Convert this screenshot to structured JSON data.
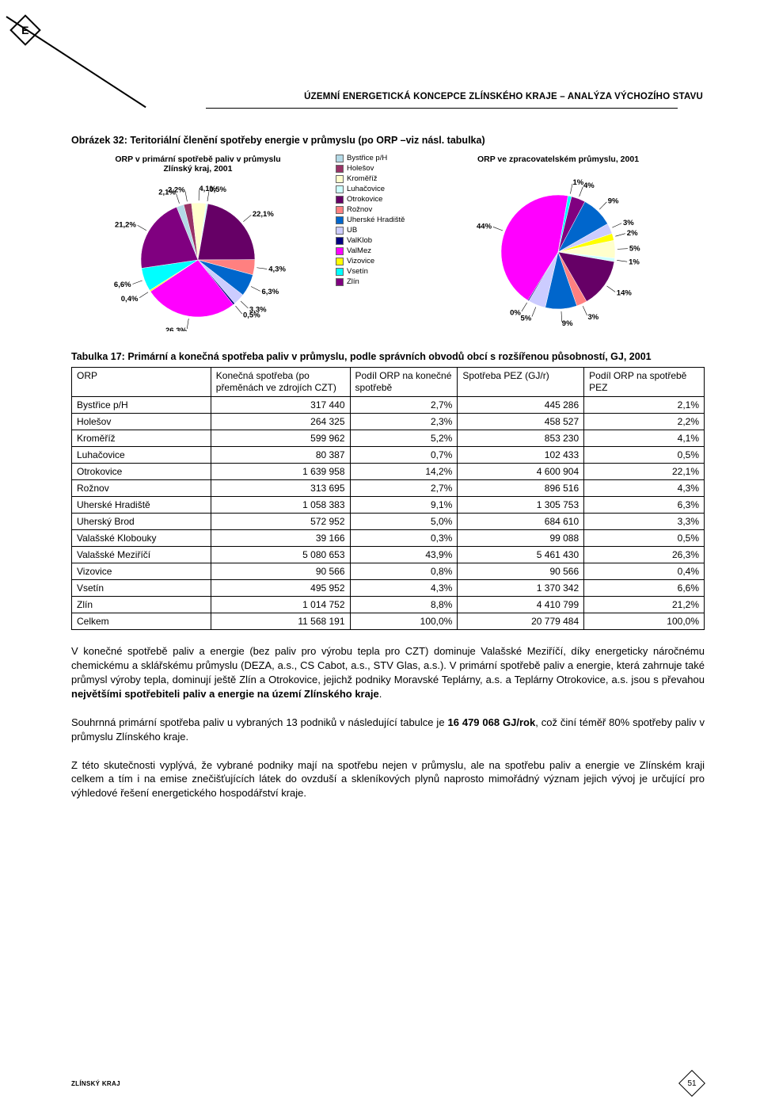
{
  "header": {
    "title": "ÚZEMNÍ ENERGETICKÁ KONCEPCE ZLÍNSKÉHO KRAJE – ANALÝZA VÝCHOZÍHO STAVU",
    "logo_letter": "E"
  },
  "figure": {
    "caption": "Obrázek 32:  Teritoriální členění spotřeby energie v průmyslu (po ORP –viz násl. tabulka)"
  },
  "legend": {
    "items": [
      {
        "label": "Bystřice p/H",
        "color": "#b3d9e6"
      },
      {
        "label": "Holešov",
        "color": "#993366"
      },
      {
        "label": "Kroměříž",
        "color": "#ffffcc"
      },
      {
        "label": "Luhačovice",
        "color": "#ccffff"
      },
      {
        "label": "Otrokovice",
        "color": "#660066"
      },
      {
        "label": "Rožnov",
        "color": "#ff8080"
      },
      {
        "label": "Uherské Hradiště",
        "color": "#0066cc"
      },
      {
        "label": "UB",
        "color": "#ccccff"
      },
      {
        "label": "ValKlob",
        "color": "#000080"
      },
      {
        "label": "ValMez",
        "color": "#ff00ff"
      },
      {
        "label": "Vizovice",
        "color": "#ffff00"
      },
      {
        "label": "Vsetín",
        "color": "#00ffff"
      },
      {
        "label": "Zlín",
        "color": "#800080"
      }
    ]
  },
  "chart_left": {
    "type": "pie",
    "title": "ORP v primární spotřebě paliv v průmyslu\nZlínský kraj, 2001",
    "slices": [
      {
        "label": "2,1%",
        "value": 2.1,
        "color": "#b3d9e6"
      },
      {
        "label": "2,2%",
        "value": 2.2,
        "color": "#993366"
      },
      {
        "label": "4,1%",
        "value": 4.1,
        "color": "#ffffcc"
      },
      {
        "label": "0,5%",
        "value": 0.5,
        "color": "#ccffff"
      },
      {
        "label": "22,1%",
        "value": 22.1,
        "color": "#660066"
      },
      {
        "label": "4,3%",
        "value": 4.3,
        "color": "#ff8080"
      },
      {
        "label": "6,3%",
        "value": 6.3,
        "color": "#0066cc"
      },
      {
        "label": "3,3%",
        "value": 3.3,
        "color": "#ccccff"
      },
      {
        "label": "0,5%",
        "value": 0.5,
        "color": "#000080"
      },
      {
        "label": "26,3%",
        "value": 26.3,
        "color": "#ff00ff"
      },
      {
        "label": "0,4%",
        "value": 0.4,
        "color": "#ffff00"
      },
      {
        "label": "6,6%",
        "value": 6.6,
        "color": "#00ffff"
      },
      {
        "label": "21,2%",
        "value": 21.2,
        "color": "#800080"
      }
    ]
  },
  "chart_right": {
    "type": "pie",
    "title": "ORP ve zpracovatelském průmyslu, 2001",
    "slices": [
      {
        "label": "9%",
        "value": 9,
        "color": "#0066cc"
      },
      {
        "label": "3%",
        "value": 3,
        "color": "#ccccff"
      },
      {
        "label": "2%",
        "value": 2,
        "color": "#ffff00"
      },
      {
        "label": "5%",
        "value": 5,
        "color": "#ffffcc"
      },
      {
        "label": "1%",
        "value": 1,
        "color": "#ccffff"
      },
      {
        "label": "14%",
        "value": 14,
        "color": "#660066"
      },
      {
        "label": "3%",
        "value": 3,
        "color": "#ff8080"
      },
      {
        "label": "9%",
        "value": 9,
        "color": "#0066cc"
      },
      {
        "label": "5%",
        "value": 5,
        "color": "#ccccff"
      },
      {
        "label": "0%",
        "value": 0.3,
        "color": "#000080"
      },
      {
        "label": "44%",
        "value": 44,
        "color": "#ff00ff"
      },
      {
        "label": "1%",
        "value": 1,
        "color": "#00ffff"
      },
      {
        "label": "4%",
        "value": 4,
        "color": "#800080"
      }
    ]
  },
  "table": {
    "caption": "Tabulka 17: Primární a konečná spotřeba paliv v průmyslu, podle správních obvodů obcí s rozšířenou působností, GJ, 2001",
    "columns": [
      "ORP",
      "Konečná spotřeba (po přeměnách ve zdrojích CZT)",
      "Podíl ORP na konečné spotřebě",
      "Spotřeba PEZ (GJ/r)",
      "Podíl ORP na spotřebě PEZ"
    ],
    "rows": [
      [
        "Bystřice p/H",
        "317 440",
        "2,7%",
        "445 286",
        "2,1%"
      ],
      [
        "Holešov",
        "264 325",
        "2,3%",
        "458 527",
        "2,2%"
      ],
      [
        "Kroměříž",
        "599 962",
        "5,2%",
        "853 230",
        "4,1%"
      ],
      [
        "Luhačovice",
        "80 387",
        "0,7%",
        "102 433",
        "0,5%"
      ],
      [
        "Otrokovice",
        "1 639 958",
        "14,2%",
        "4 600 904",
        "22,1%"
      ],
      [
        "Rožnov",
        "313 695",
        "2,7%",
        "896 516",
        "4,3%"
      ],
      [
        "Uherské Hradiště",
        "1 058 383",
        "9,1%",
        "1 305 753",
        "6,3%"
      ],
      [
        "Uherský Brod",
        "572 952",
        "5,0%",
        "684 610",
        "3,3%"
      ],
      [
        "Valašské Klobouky",
        "39 166",
        "0,3%",
        "99 088",
        "0,5%"
      ],
      [
        "Valašské Meziříčí",
        "5 080 653",
        "43,9%",
        "5 461 430",
        "26,3%"
      ],
      [
        "Vizovice",
        "90 566",
        "0,8%",
        "90 566",
        "0,4%"
      ],
      [
        "Vsetín",
        "495 952",
        "4,3%",
        "1 370 342",
        "6,6%"
      ],
      [
        "Zlín",
        "1 014 752",
        "8,8%",
        "4 410 799",
        "21,2%"
      ],
      [
        "Celkem",
        "11 568 191",
        "100,0%",
        "20 779 484",
        "100,0%"
      ]
    ],
    "col_widths": [
      "22%",
      "22%",
      "17%",
      "20%",
      "19%"
    ],
    "header_line_height": "1.25"
  },
  "paragraphs": [
    "V konečné spotřebě paliv a energie (bez paliv pro výrobu tepla pro CZT) dominuje Valašské Meziříčí, díky energeticky náročnému chemickému a sklářskému průmyslu (DEZA, a.s., CS Cabot, a.s., STV Glas, a.s.). V primární spotřebě paliv a energie, která zahrnuje také průmysl výroby tepla, dominují ještě Zlín a Otrokovice, jejichž podniky Moravské Teplárny, a.s. a Teplárny Otrokovice, a.s. jsou s převahou <b>největšími spotřebiteli paliv a energie na území Zlínského kraje</b>.",
    "Souhrnná primární spotřeba paliv u vybraných 13 podniků v následující tabulce je <b>16 479 068 GJ/rok</b>, což činí téměř 80% spotřeby paliv v průmyslu Zlínského kraje.",
    "Z této skutečnosti vyplývá, že vybrané podniky mají na spotřebu nejen v průmyslu, ale na spotřebu paliv a energie ve Zlínském kraji celkem a tím i na emise znečišťujících látek do ovzduší a skleníkových plynů naprosto mimořádný význam jejich vývoj je určující pro výhledové řešení energetického hospodářství kraje."
  ],
  "footer": {
    "label": "ZLÍNSKÝ KRAJ",
    "page": "51"
  }
}
